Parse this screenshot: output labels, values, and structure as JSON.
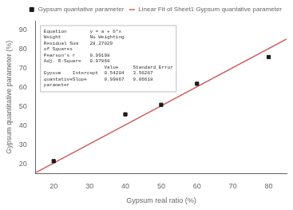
{
  "chart_data": {
    "type": "scatter",
    "xlabel": "Gypsum real ratio (%)",
    "ylabel": "Gypsum quantitative parameter (%)",
    "series": [
      {
        "name": "Gypsum quantative parameter",
        "type": "scatter",
        "marker": "square",
        "color": "#1a1a1a",
        "x": [
          20,
          40,
          50,
          60,
          80
        ],
        "values": [
          21.5,
          46,
          51,
          62,
          76
        ]
      },
      {
        "name": "Linear Fit of Sheet1 Gypsum quantative parameter",
        "type": "line",
        "line_style": "solid",
        "color": "#cd5c5c",
        "x": [
          15,
          85
        ],
        "values": [
          15.52209,
          85.42899
        ]
      }
    ],
    "xlim": [
      15,
      85
    ],
    "ylim": [
      15,
      95
    ],
    "xticks": [
      20,
      30,
      40,
      50,
      60,
      70,
      80
    ],
    "yticks": [
      20,
      30,
      40,
      50,
      60,
      70,
      80,
      90
    ],
    "grid": false,
    "legend": "upper right",
    "annotations": [
      "Equation        y = a + b*x",
      "Weight          No Weighting",
      "Residual Sum    28.27029",
      "of Squares",
      "Pearson's r     0.99198",
      "Adj. R-Square   0.97868",
      "                     Value     Standard Error",
      "Gypsum    Intercept  0.54204   3.56267",
      "quantativeSlope      0.99867   0.06618",
      "parameter"
    ]
  }
}
